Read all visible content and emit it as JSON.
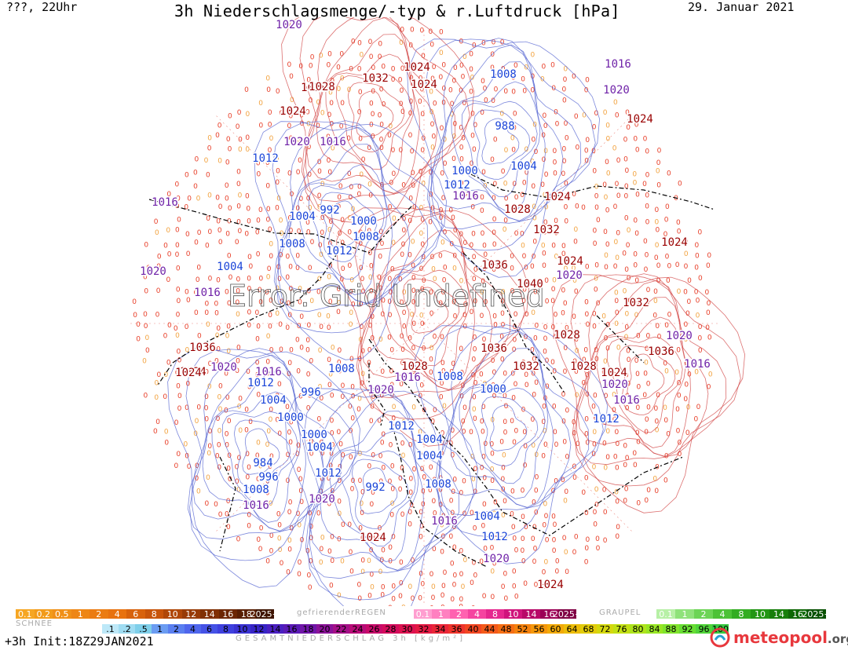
{
  "header": {
    "left": "???, 22Uhr",
    "title": "3h Niederschlagsmenge/-typ & r.Luftdruck [hPa]",
    "date": "29. Januar 2021"
  },
  "map": {
    "watermark": "Error: Grid Undefined",
    "pressure_labels": [
      {
        "text": "1020"
      },
      {
        "text": "1024"
      },
      {
        "text": "1032"
      },
      {
        "text": "1028"
      },
      {
        "text": "1024"
      },
      {
        "text": "1020"
      },
      {
        "text": "1016"
      },
      {
        "text": "1012"
      },
      {
        "text": "992"
      },
      {
        "text": "1004"
      },
      {
        "text": "1016"
      },
      {
        "text": "1000"
      },
      {
        "text": "1008"
      },
      {
        "text": "1012"
      },
      {
        "text": "1008"
      },
      {
        "text": "1004"
      },
      {
        "text": "1020"
      },
      {
        "text": "1016"
      },
      {
        "text": "1008"
      },
      {
        "text": "988"
      },
      {
        "text": "1016"
      },
      {
        "text": "1020"
      },
      {
        "text": "1024"
      },
      {
        "text": "1000"
      },
      {
        "text": "1012"
      },
      {
        "text": "1016"
      },
      {
        "text": "1004"
      },
      {
        "text": "1028"
      },
      {
        "text": "1024"
      },
      {
        "text": "1032"
      },
      {
        "text": "1024"
      },
      {
        "text": "1024"
      },
      {
        "text": "1020"
      },
      {
        "text": "1036"
      },
      {
        "text": "1040"
      },
      {
        "text": "1032"
      },
      {
        "text": "1028"
      },
      {
        "text": "1036"
      },
      {
        "text": "1020"
      },
      {
        "text": "1036"
      },
      {
        "text": "1016"
      },
      {
        "text": "1024"
      },
      {
        "text": "1036"
      },
      {
        "text": "1028"
      },
      {
        "text": "1016"
      },
      {
        "text": "1020"
      },
      {
        "text": "1032"
      },
      {
        "text": "1028"
      },
      {
        "text": "1024"
      },
      {
        "text": "1020"
      },
      {
        "text": "1016"
      },
      {
        "text": "1012"
      },
      {
        "text": "1008"
      },
      {
        "text": "1000"
      },
      {
        "text": "1024"
      },
      {
        "text": "1020"
      },
      {
        "text": "1016"
      },
      {
        "text": "1012"
      },
      {
        "text": "1004"
      },
      {
        "text": "1000"
      },
      {
        "text": "996"
      },
      {
        "text": "1008"
      },
      {
        "text": "1012"
      },
      {
        "text": "1000"
      },
      {
        "text": "1004"
      },
      {
        "text": "984"
      },
      {
        "text": "996"
      },
      {
        "text": "1008"
      },
      {
        "text": "1016"
      },
      {
        "text": "992"
      },
      {
        "text": "1012"
      },
      {
        "text": "1004"
      },
      {
        "text": "1004"
      },
      {
        "text": "1008"
      },
      {
        "text": "1020"
      },
      {
        "text": "1016"
      },
      {
        "text": "1004"
      },
      {
        "text": "1012"
      },
      {
        "text": "1024"
      },
      {
        "text": "1020"
      },
      {
        "text": "1024"
      },
      {
        "text": "1028"
      },
      {
        "text": "1024"
      }
    ],
    "colors": {
      "high": "#990000",
      "low": "#1a44d8",
      "mid": "#6f22a8",
      "isobar_high": "#d04040",
      "isobar_low": "#5060d0",
      "coast": "#000000",
      "drizzle": "#e8402a"
    }
  },
  "legend": {
    "snow_label": "SCHNEE",
    "freezing_rain_label": "gefrierenderREGEN",
    "graupel_label": "GRAUPEL",
    "rain_scale": [
      "0.1",
      "0.2",
      "0.5",
      "1",
      "2",
      "4",
      "6",
      "8",
      "10",
      "12",
      "14",
      "16",
      "18",
      "2025+"
    ],
    "freezing_scale": [
      "0.1",
      "1",
      "2",
      "4",
      "8",
      "10",
      "14",
      "16",
      "2025+"
    ],
    "graupel_scale": [
      "0.1",
      "1",
      "2",
      "4",
      "8",
      "10",
      "14",
      "16",
      "2025+"
    ],
    "total_scale": [
      ".1",
      ".2",
      ".5",
      "1",
      "2",
      "4",
      "6",
      "8",
      "10",
      "12",
      "14",
      "16",
      "18",
      "20",
      "22",
      "24",
      "26",
      "28",
      "30",
      "32",
      "34",
      "36",
      "40",
      "44",
      "48",
      "52",
      "56",
      "60",
      "64",
      "68",
      "72",
      "76",
      "80",
      "84",
      "88",
      "92",
      "96",
      "100"
    ],
    "colors_rain": [
      "#f6a623",
      "#f29b1a",
      "#f09018",
      "#ee8615",
      "#eb7c12",
      "#e8720f",
      "#d8620c",
      "#c8540a",
      "#b04708",
      "#983b06",
      "#813004",
      "#6c2603",
      "#581e02",
      "#3e1400"
    ],
    "colors_freezing": [
      "#ff9ed0",
      "#ff80c0",
      "#ff62b0",
      "#f544a0",
      "#e6288f",
      "#d0147c",
      "#b80868",
      "#9c0056",
      "#800044"
    ],
    "colors_graupel": [
      "#b7f0a6",
      "#8fe27a",
      "#6cd455",
      "#4cc236",
      "#33ad22",
      "#229614",
      "#177f0b",
      "#0e6805",
      "#085102"
    ],
    "colors_total": [
      "#bde8f8",
      "#9fdcf2",
      "#7fcfea",
      "#6b9cf2",
      "#5a7ff0",
      "#4f66ec",
      "#4552e6",
      "#3e40de",
      "#3a32d2",
      "#3624c6",
      "#4a1fc0",
      "#5a1ab6",
      "#7016a8",
      "#8a1298",
      "#a40f88",
      "#b80c78",
      "#c80b6a",
      "#d40c5c",
      "#dd1250",
      "#e41a44",
      "#ea2638",
      "#ef342c",
      "#f24622",
      "#f45a1a",
      "#f56e14",
      "#f5820e",
      "#f5970a",
      "#f2aa08",
      "#ecbc08",
      "#e2cc0a",
      "#d4d80e",
      "#c2e014",
      "#aee41c",
      "#98e624",
      "#80e42c",
      "#68de34",
      "#50d43a",
      "#38c840"
    ],
    "total_label": "GESAMTNIEDERSCHLAG 3h [kg/m²]"
  },
  "footer": {
    "init": "+3h Init:18Z29JAN2021",
    "logo_text": "meteopool",
    "logo_tld": ".org"
  }
}
